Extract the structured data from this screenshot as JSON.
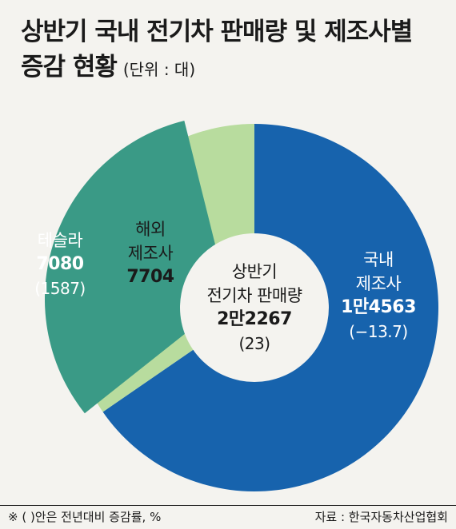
{
  "title": {
    "line1": "상반기 국내 전기차 판매량 및 제조사별",
    "line2": "증감 현황",
    "unit": "(단위 : 대)"
  },
  "center": {
    "line1": "상반기",
    "line2": "전기차 판매량",
    "total": "2만2267",
    "change": "(23)"
  },
  "labels": {
    "domestic": {
      "line1": "국내",
      "line2": "제조사",
      "value": "1만4563",
      "change": "(−13.7)"
    },
    "overseas": {
      "line1": "해외",
      "line2": "제조사",
      "value": "7704"
    },
    "tesla": {
      "line1": "테슬라",
      "value": "7080",
      "change": "(1587)"
    }
  },
  "footer": {
    "note": "※ (  )안은 전년대비 증감률, %",
    "source": "자료 : 한국자동차산업협회"
  },
  "chart_data": {
    "type": "pie",
    "total": 22267,
    "total_change_pct": 23,
    "slices": [
      {
        "name": "국내 제조사",
        "value": 14563,
        "change_pct": -13.7,
        "color": "#1763ad"
      },
      {
        "name": "해외 제조사",
        "value": 7704,
        "color": "#b8dc9e"
      }
    ],
    "sub_slices": [
      {
        "name": "테슬라",
        "value": 7080,
        "change_pct": 1587,
        "parent": "해외 제조사",
        "color": "#3a9a86"
      }
    ]
  }
}
